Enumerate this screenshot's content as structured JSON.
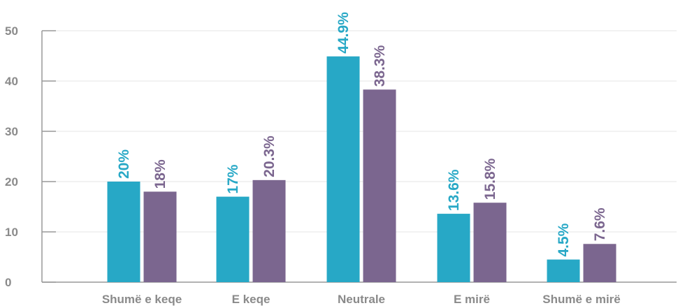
{
  "chart_data": {
    "type": "bar",
    "categories": [
      "Shumë e keqe",
      "E keqe",
      "Neutrale",
      "E mirë",
      "Shumë e mirë"
    ],
    "series": [
      {
        "values": [
          20,
          17,
          44.9,
          13.6,
          4.5
        ],
        "labels": [
          "20%",
          "17%",
          "44.9%",
          "13.6%",
          "4.5%"
        ],
        "color": "#27a8c6"
      },
      {
        "values": [
          18,
          20.3,
          38.3,
          15.8,
          7.6
        ],
        "labels": [
          "18%",
          "20.3%",
          "38.3%",
          "15.8%",
          "7.6%"
        ],
        "color": "#7b668f"
      }
    ],
    "ylim": [
      0,
      50
    ],
    "yticks": [
      "0",
      "10",
      "20",
      "30",
      "40",
      "50"
    ],
    "grid": true,
    "grid_color": "#e6e6e6",
    "axis_color": "#999999",
    "tick_label_color": "#8a8a8a"
  }
}
